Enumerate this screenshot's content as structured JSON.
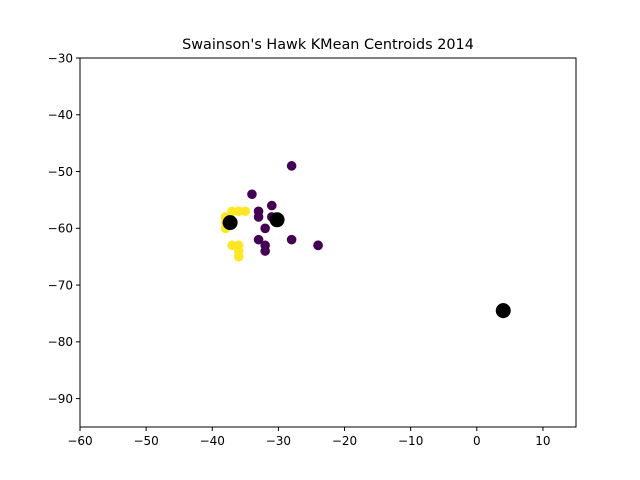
{
  "chart_data": {
    "type": "scatter",
    "title": "Swainson's Hawk KMean Centroids 2014",
    "xlabel": "",
    "ylabel": "",
    "xlim": [
      -60,
      15
    ],
    "ylim": [
      -95,
      -30
    ],
    "x_ticks": [
      -60,
      -50,
      -40,
      -30,
      -20,
      -10,
      0,
      10
    ],
    "x_tick_labels": [
      "−60",
      "−50",
      "−40",
      "−30",
      "−20",
      "−10",
      "0",
      "10"
    ],
    "y_ticks": [
      -90,
      -80,
      -70,
      -60,
      -50,
      -40,
      -30
    ],
    "y_tick_labels": [
      "−90",
      "−80",
      "−70",
      "−60",
      "−50",
      "−40",
      "−30"
    ],
    "grid": false,
    "series": [
      {
        "color": "#440154",
        "points": [
          [
            -28,
            -49
          ],
          [
            -34,
            -54
          ],
          [
            -31,
            -56
          ],
          [
            -33,
            -57
          ],
          [
            -33,
            -58
          ],
          [
            -31,
            -58
          ],
          [
            -30,
            -58.5
          ],
          [
            -32,
            -60
          ],
          [
            -33,
            -62
          ],
          [
            -28,
            -62
          ],
          [
            -32,
            -63
          ],
          [
            -32,
            -64
          ],
          [
            -24,
            -63
          ],
          [
            -24,
            -63
          ]
        ]
      },
      {
        "color": "#21918c",
        "points": [
          [
            4,
            -74
          ],
          [
            4,
            -75
          ],
          [
            3.9,
            -74.3
          ],
          [
            4.1,
            -74.8
          ]
        ]
      },
      {
        "color": "#fde725",
        "points": [
          [
            -37,
            -57
          ],
          [
            -36,
            -57
          ],
          [
            -35,
            -57
          ],
          [
            -38,
            -58
          ],
          [
            -38,
            -59
          ],
          [
            -38,
            -60
          ],
          [
            -37,
            -63
          ],
          [
            -36,
            -63
          ],
          [
            -36,
            -64
          ],
          [
            -36,
            -65
          ]
        ]
      },
      {
        "color": "#000000",
        "marker": "large",
        "points": [
          [
            -37.3,
            -59
          ],
          [
            -30.2,
            -58.5
          ],
          [
            4,
            -74.5
          ]
        ]
      }
    ]
  }
}
